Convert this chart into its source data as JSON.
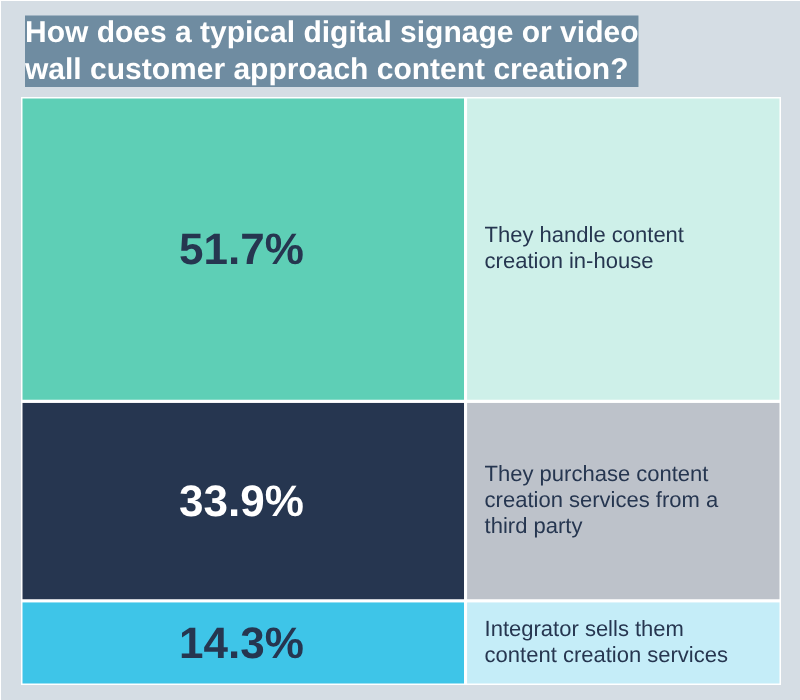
{
  "chart_data": {
    "type": "bar",
    "stacked": true,
    "title": "How does a typical digital signage or video wall customer approach content creation?",
    "categories": [
      null
    ],
    "series": [
      {
        "name": "Integrator sells them content creation services",
        "color": "#3ec5e8",
        "values": [
          14.3
        ],
        "value_labels": [
          "14.3%"
        ]
      },
      {
        "name": "They purchase content creation services from a third party",
        "color": "#263650",
        "values": [
          33.9
        ],
        "value_labels": [
          "33.9%"
        ]
      },
      {
        "name": "They handle content creation in-house",
        "color": "#5ecfb6",
        "values": [
          51.7
        ],
        "value_labels": [
          "51.7%"
        ]
      }
    ]
  }
}
